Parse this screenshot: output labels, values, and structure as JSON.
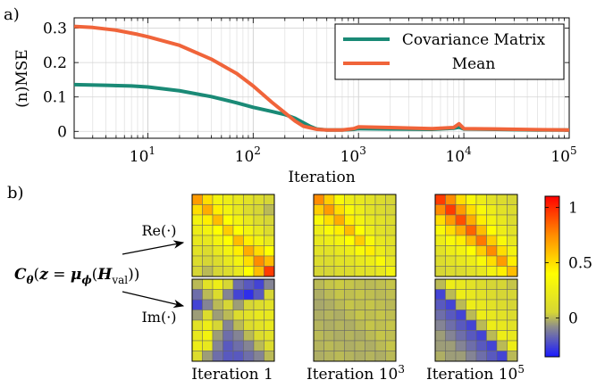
{
  "panel_a_label": "a)",
  "panel_b_label": "b)",
  "colors": {
    "covariance": "#1a8a76",
    "mean": "#f0643a"
  },
  "chart_data": [
    {
      "type": "line",
      "xlabel": "Iteration",
      "ylabel": "(n)MSE",
      "xscale": "log",
      "xlim": [
        2,
        100000
      ],
      "ylim": [
        -0.02,
        0.33
      ],
      "x_ticks": [
        {
          "v": 10,
          "b": "10",
          "e": "1"
        },
        {
          "v": 100,
          "b": "10",
          "e": "2"
        },
        {
          "v": 1000,
          "b": "10",
          "e": "3"
        },
        {
          "v": 10000,
          "b": "10",
          "e": "4"
        },
        {
          "v": 100000,
          "b": "10",
          "e": "5"
        }
      ],
      "y_ticks": [
        {
          "v": 0,
          "label": "0"
        },
        {
          "v": 0.1,
          "label": "0.1"
        },
        {
          "v": 0.2,
          "label": "0.2"
        },
        {
          "v": 0.3,
          "label": "0.3"
        }
      ],
      "grid": true,
      "legend_position": "top-right",
      "series": [
        {
          "name": "Covariance Matrix",
          "color": "#1a8a76",
          "x": [
            2,
            4,
            7,
            10,
            20,
            40,
            70,
            100,
            150,
            200,
            250,
            300,
            350,
            400,
            500,
            700,
            900,
            1000,
            2000,
            5000,
            8000,
            9000,
            10000,
            20000,
            50000,
            100000
          ],
          "y": [
            0.136,
            0.134,
            0.132,
            0.129,
            0.118,
            0.101,
            0.083,
            0.07,
            0.058,
            0.049,
            0.038,
            0.025,
            0.014,
            0.007,
            0.004,
            0.004,
            0.006,
            0.008,
            0.007,
            0.006,
            0.009,
            0.012,
            0.007,
            0.006,
            0.004,
            0.004
          ]
        },
        {
          "name": "Mean",
          "color": "#f0643a",
          "x": [
            2,
            3,
            5,
            8,
            10,
            20,
            40,
            70,
            100,
            150,
            200,
            250,
            300,
            400,
            500,
            700,
            900,
            1000,
            2000,
            5000,
            8000,
            9000,
            10000,
            20000,
            50000,
            100000
          ],
          "y": [
            0.305,
            0.302,
            0.294,
            0.282,
            0.275,
            0.25,
            0.21,
            0.168,
            0.132,
            0.085,
            0.054,
            0.03,
            0.015,
            0.006,
            0.004,
            0.004,
            0.008,
            0.013,
            0.011,
            0.008,
            0.011,
            0.022,
            0.008,
            0.007,
            0.005,
            0.004
          ]
        }
      ]
    },
    {
      "type": "heatmap",
      "matrix_label": "𝑪𝜽(𝒛 = 𝝁𝝓(𝑯val))",
      "matrix_label_parts": {
        "C": "C",
        "theta": "θ",
        "open": "(",
        "z": "z",
        "eq": " = ",
        "mu": "μ",
        "phi": "ϕ",
        "open2": "(",
        "H": "H",
        "val": "val",
        "close": "))"
      },
      "row_labels": [
        "Re(·)",
        "Im(·)"
      ],
      "columns": [
        {
          "label": "Iteration ",
          "base": "1",
          "exp": ""
        },
        {
          "label": "Iteration ",
          "base": "10",
          "exp": "3"
        },
        {
          "label": "Iteration ",
          "base": "10",
          "exp": "5"
        }
      ],
      "colorbar": {
        "range": [
          -0.35,
          1.1
        ],
        "ticks": [
          {
            "v": 0,
            "label": "0"
          },
          {
            "v": 0.5,
            "label": "0.5"
          },
          {
            "v": 1,
            "label": "1"
          }
        ],
        "colormap": [
          "#1a1aff",
          "#8c8c8c",
          "#d6d635",
          "#ffff00",
          "#ff8c00",
          "#ff0000"
        ]
      },
      "matrices": {
        "re_1": [
          [
            0.7,
            0.5,
            0.3,
            0.25,
            0.2,
            0.15,
            0.1,
            0.05
          ],
          [
            0.5,
            0.65,
            0.45,
            0.3,
            0.2,
            0.1,
            0.05,
            0.0
          ],
          [
            0.3,
            0.45,
            0.6,
            0.4,
            0.3,
            0.2,
            0.1,
            0.05
          ],
          [
            0.25,
            0.3,
            0.4,
            0.55,
            0.4,
            0.3,
            0.2,
            0.1
          ],
          [
            0.2,
            0.2,
            0.3,
            0.4,
            0.6,
            0.45,
            0.3,
            0.2
          ],
          [
            0.15,
            0.1,
            0.2,
            0.3,
            0.45,
            0.65,
            0.5,
            0.4
          ],
          [
            0.1,
            0.05,
            0.1,
            0.2,
            0.3,
            0.5,
            0.75,
            0.6
          ],
          [
            0.05,
            0.0,
            0.05,
            0.1,
            0.2,
            0.4,
            0.6,
            0.95
          ]
        ],
        "re_3": [
          [
            0.75,
            0.55,
            0.35,
            0.25,
            0.2,
            0.15,
            0.1,
            0.05
          ],
          [
            0.55,
            0.7,
            0.5,
            0.35,
            0.25,
            0.15,
            0.1,
            0.05
          ],
          [
            0.35,
            0.5,
            0.65,
            0.45,
            0.3,
            0.2,
            0.15,
            0.1
          ],
          [
            0.25,
            0.35,
            0.45,
            0.6,
            0.4,
            0.25,
            0.15,
            0.1
          ],
          [
            0.2,
            0.25,
            0.3,
            0.4,
            0.55,
            0.35,
            0.2,
            0.15
          ],
          [
            0.15,
            0.15,
            0.2,
            0.25,
            0.35,
            0.45,
            0.25,
            0.15
          ],
          [
            0.1,
            0.1,
            0.15,
            0.15,
            0.2,
            0.25,
            0.35,
            0.2
          ],
          [
            0.05,
            0.05,
            0.1,
            0.1,
            0.15,
            0.15,
            0.2,
            0.3
          ]
        ],
        "re_5": [
          [
            0.95,
            0.75,
            0.5,
            0.35,
            0.25,
            0.15,
            0.1,
            0.05
          ],
          [
            0.75,
            0.95,
            0.7,
            0.5,
            0.35,
            0.25,
            0.15,
            0.1
          ],
          [
            0.5,
            0.7,
            0.9,
            0.65,
            0.45,
            0.3,
            0.2,
            0.1
          ],
          [
            0.35,
            0.5,
            0.65,
            0.85,
            0.6,
            0.4,
            0.25,
            0.15
          ],
          [
            0.25,
            0.35,
            0.45,
            0.6,
            0.8,
            0.55,
            0.35,
            0.2
          ],
          [
            0.15,
            0.25,
            0.3,
            0.4,
            0.55,
            0.75,
            0.5,
            0.3
          ],
          [
            0.1,
            0.15,
            0.2,
            0.25,
            0.35,
            0.5,
            0.7,
            0.45
          ],
          [
            0.05,
            0.1,
            0.1,
            0.15,
            0.2,
            0.3,
            0.45,
            0.6
          ]
        ],
        "im_1": [
          [
            0.0,
            0.15,
            0.25,
            0.05,
            -0.15,
            -0.2,
            -0.25,
            -0.1
          ],
          [
            -0.15,
            0.0,
            0.1,
            -0.1,
            -0.25,
            -0.3,
            -0.2,
            0.05
          ],
          [
            -0.25,
            -0.1,
            0.0,
            0.05,
            -0.05,
            0.05,
            0.1,
            0.15
          ],
          [
            -0.05,
            0.1,
            -0.05,
            0.0,
            0.1,
            0.15,
            0.2,
            0.2
          ],
          [
            0.15,
            0.25,
            0.05,
            -0.1,
            0.0,
            0.1,
            0.15,
            0.2
          ],
          [
            0.2,
            0.3,
            -0.05,
            -0.15,
            -0.1,
            0.0,
            0.1,
            0.15
          ],
          [
            0.25,
            0.2,
            -0.1,
            -0.2,
            -0.15,
            -0.1,
            0.0,
            0.1
          ],
          [
            0.1,
            -0.05,
            -0.15,
            -0.2,
            -0.2,
            -0.15,
            -0.1,
            0.0
          ]
        ],
        "im_3": [
          [
            0.0,
            0.02,
            0.03,
            0.02,
            0.01,
            0.0,
            0.01,
            0.02
          ],
          [
            -0.02,
            0.0,
            0.02,
            0.01,
            0.02,
            0.01,
            0.0,
            0.01
          ],
          [
            -0.03,
            -0.02,
            0.0,
            0.02,
            0.01,
            0.02,
            0.01,
            0.0
          ],
          [
            -0.02,
            -0.01,
            -0.02,
            0.0,
            0.02,
            0.01,
            0.02,
            0.01
          ],
          [
            -0.01,
            -0.02,
            -0.01,
            -0.02,
            0.0,
            0.02,
            0.01,
            0.02
          ],
          [
            0.0,
            -0.01,
            -0.02,
            -0.01,
            -0.02,
            0.0,
            0.02,
            0.01
          ],
          [
            -0.01,
            0.0,
            -0.01,
            -0.02,
            -0.01,
            -0.02,
            0.0,
            0.02
          ],
          [
            -0.02,
            -0.01,
            0.0,
            -0.01,
            -0.02,
            -0.01,
            -0.02,
            0.0
          ]
        ],
        "im_5": [
          [
            0.0,
            0.25,
            0.2,
            0.15,
            0.1,
            0.05,
            0.05,
            0.02
          ],
          [
            -0.25,
            0.0,
            0.25,
            0.2,
            0.15,
            0.1,
            0.05,
            0.05
          ],
          [
            -0.2,
            -0.25,
            0.0,
            0.25,
            0.2,
            0.15,
            0.1,
            0.05
          ],
          [
            -0.15,
            -0.2,
            -0.25,
            0.0,
            0.25,
            0.2,
            0.15,
            0.1
          ],
          [
            -0.1,
            -0.15,
            -0.2,
            -0.25,
            0.0,
            0.25,
            0.2,
            0.15
          ],
          [
            -0.05,
            -0.1,
            -0.15,
            -0.2,
            -0.25,
            0.0,
            0.25,
            0.2
          ],
          [
            -0.05,
            -0.05,
            -0.1,
            -0.15,
            -0.2,
            -0.25,
            0.0,
            0.25
          ],
          [
            -0.02,
            -0.05,
            -0.05,
            -0.1,
            -0.15,
            -0.2,
            -0.25,
            0.0
          ]
        ]
      }
    }
  ]
}
